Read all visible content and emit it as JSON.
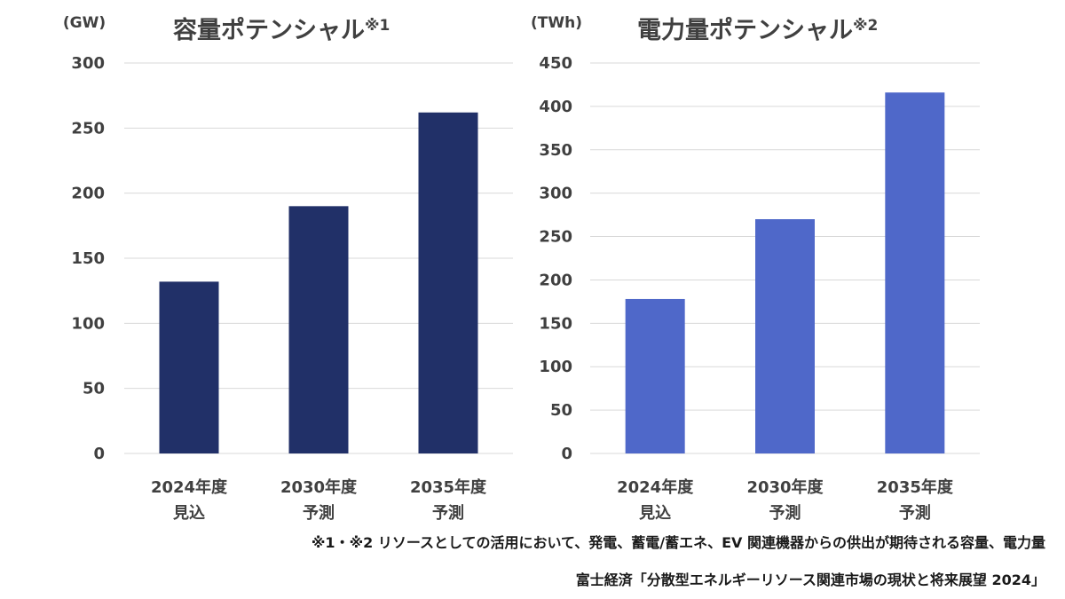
{
  "chart_data": [
    {
      "type": "bar",
      "title": "容量ポテンシャル",
      "title_note": "※1",
      "unit": "(GW)",
      "categories": [
        [
          "2024年度",
          "見込"
        ],
        [
          "2030年度",
          "予測"
        ],
        [
          "2035年度",
          "予測"
        ]
      ],
      "values": [
        132,
        190,
        262
      ],
      "ylim": [
        0,
        300
      ],
      "yticks": [
        0,
        50,
        100,
        150,
        200,
        250,
        300
      ],
      "grid": true,
      "color": "#213068"
    },
    {
      "type": "bar",
      "title": "電力量ポテンシャル",
      "title_note": "※2",
      "unit": "(TWh)",
      "categories": [
        [
          "2024年度",
          "見込"
        ],
        [
          "2030年度",
          "予測"
        ],
        [
          "2035年度",
          "予測"
        ]
      ],
      "values": [
        178,
        270,
        416
      ],
      "ylim": [
        0,
        450
      ],
      "yticks": [
        0,
        50,
        100,
        150,
        200,
        250,
        300,
        350,
        400,
        450
      ],
      "grid": true,
      "color": "#4f68c9"
    }
  ],
  "footnote": "※1・※2 リソースとしての活用において、発電、蓄電/蓄エネ、EV 関連機器からの供出が期待される容量、電力量",
  "source": "富士経済「分散型エネルギーリソース関連市場の現状と将来展望 2024」"
}
